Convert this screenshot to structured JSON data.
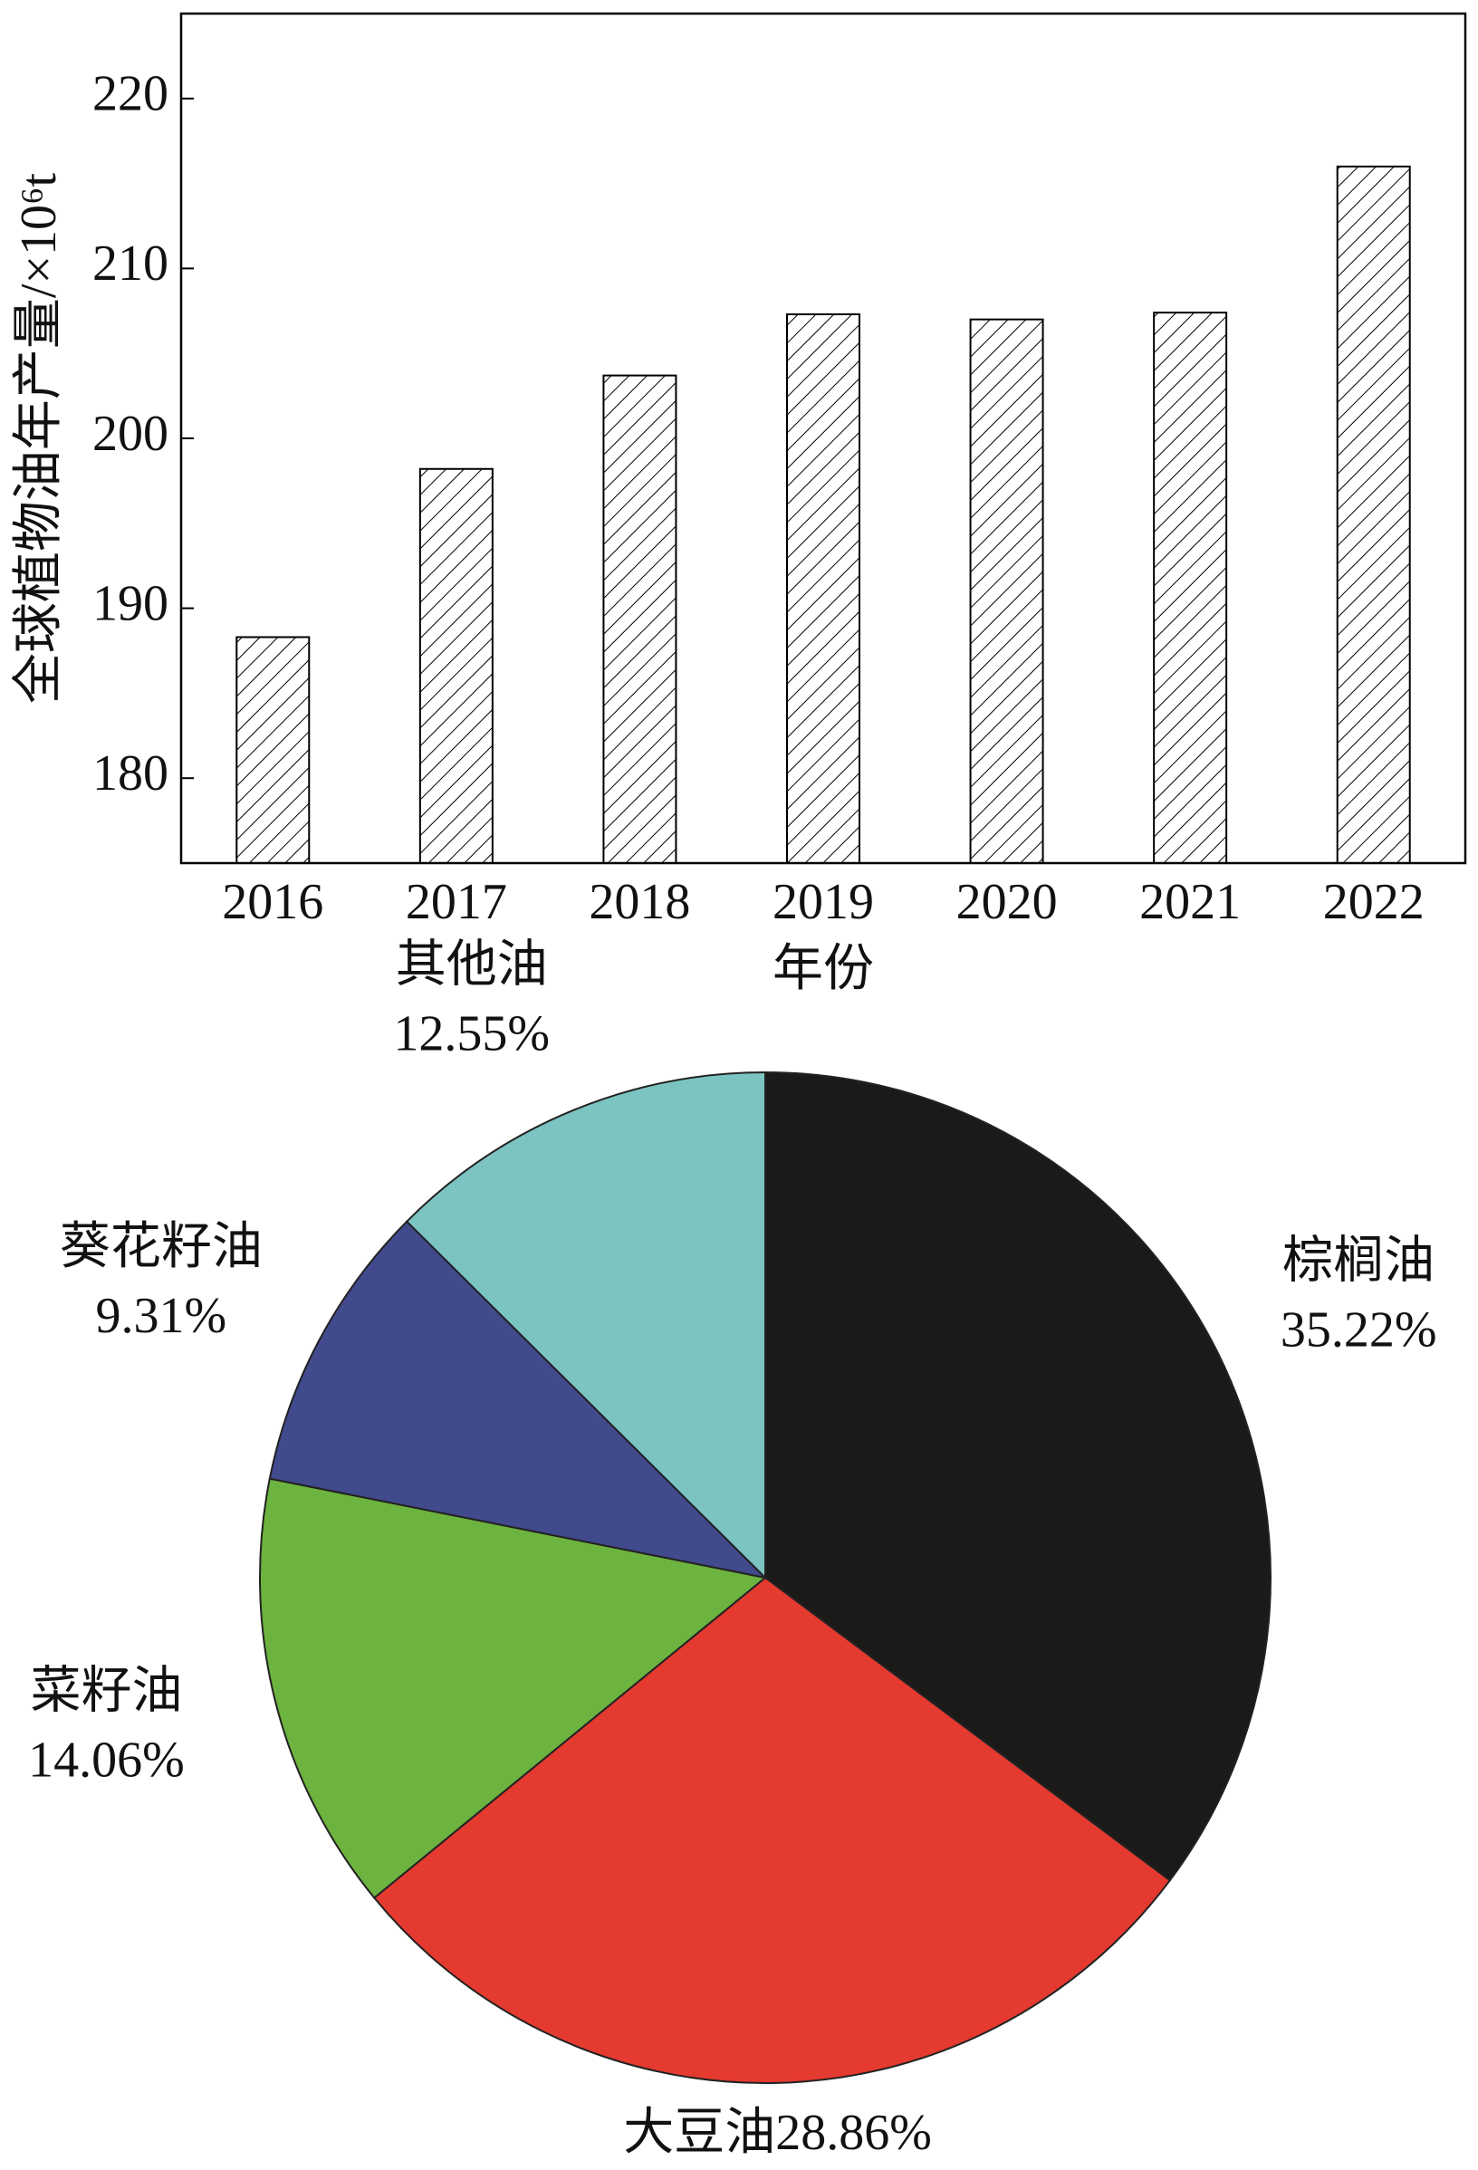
{
  "chart_data": [
    {
      "type": "bar",
      "xlabel": "年份",
      "ylabel": "全球植物油年产量/×10⁶t",
      "categories": [
        "2016",
        "2017",
        "2018",
        "2019",
        "2020",
        "2021",
        "2022"
      ],
      "values": [
        188.3,
        198.2,
        203.7,
        207.3,
        207.0,
        207.4,
        216.0
      ],
      "color": "#000000",
      "hatch": "diagonal",
      "ylim": [
        175,
        225
      ],
      "yticks": [
        180,
        190,
        200,
        210,
        220
      ]
    },
    {
      "type": "pie",
      "categories": [
        "棕榈油",
        "大豆油",
        "菜籽油",
        "葵花籽油",
        "其他油"
      ],
      "values": [
        35.22,
        28.86,
        14.06,
        9.31,
        12.55
      ],
      "value_labels": [
        "35.22%",
        "28.86%",
        "14.06%",
        "9.31%",
        "12.55%"
      ],
      "colors": [
        "#1c1a19",
        "#e43a30",
        "#6db33f",
        "#414a8c",
        "#7cc4c2"
      ]
    }
  ]
}
